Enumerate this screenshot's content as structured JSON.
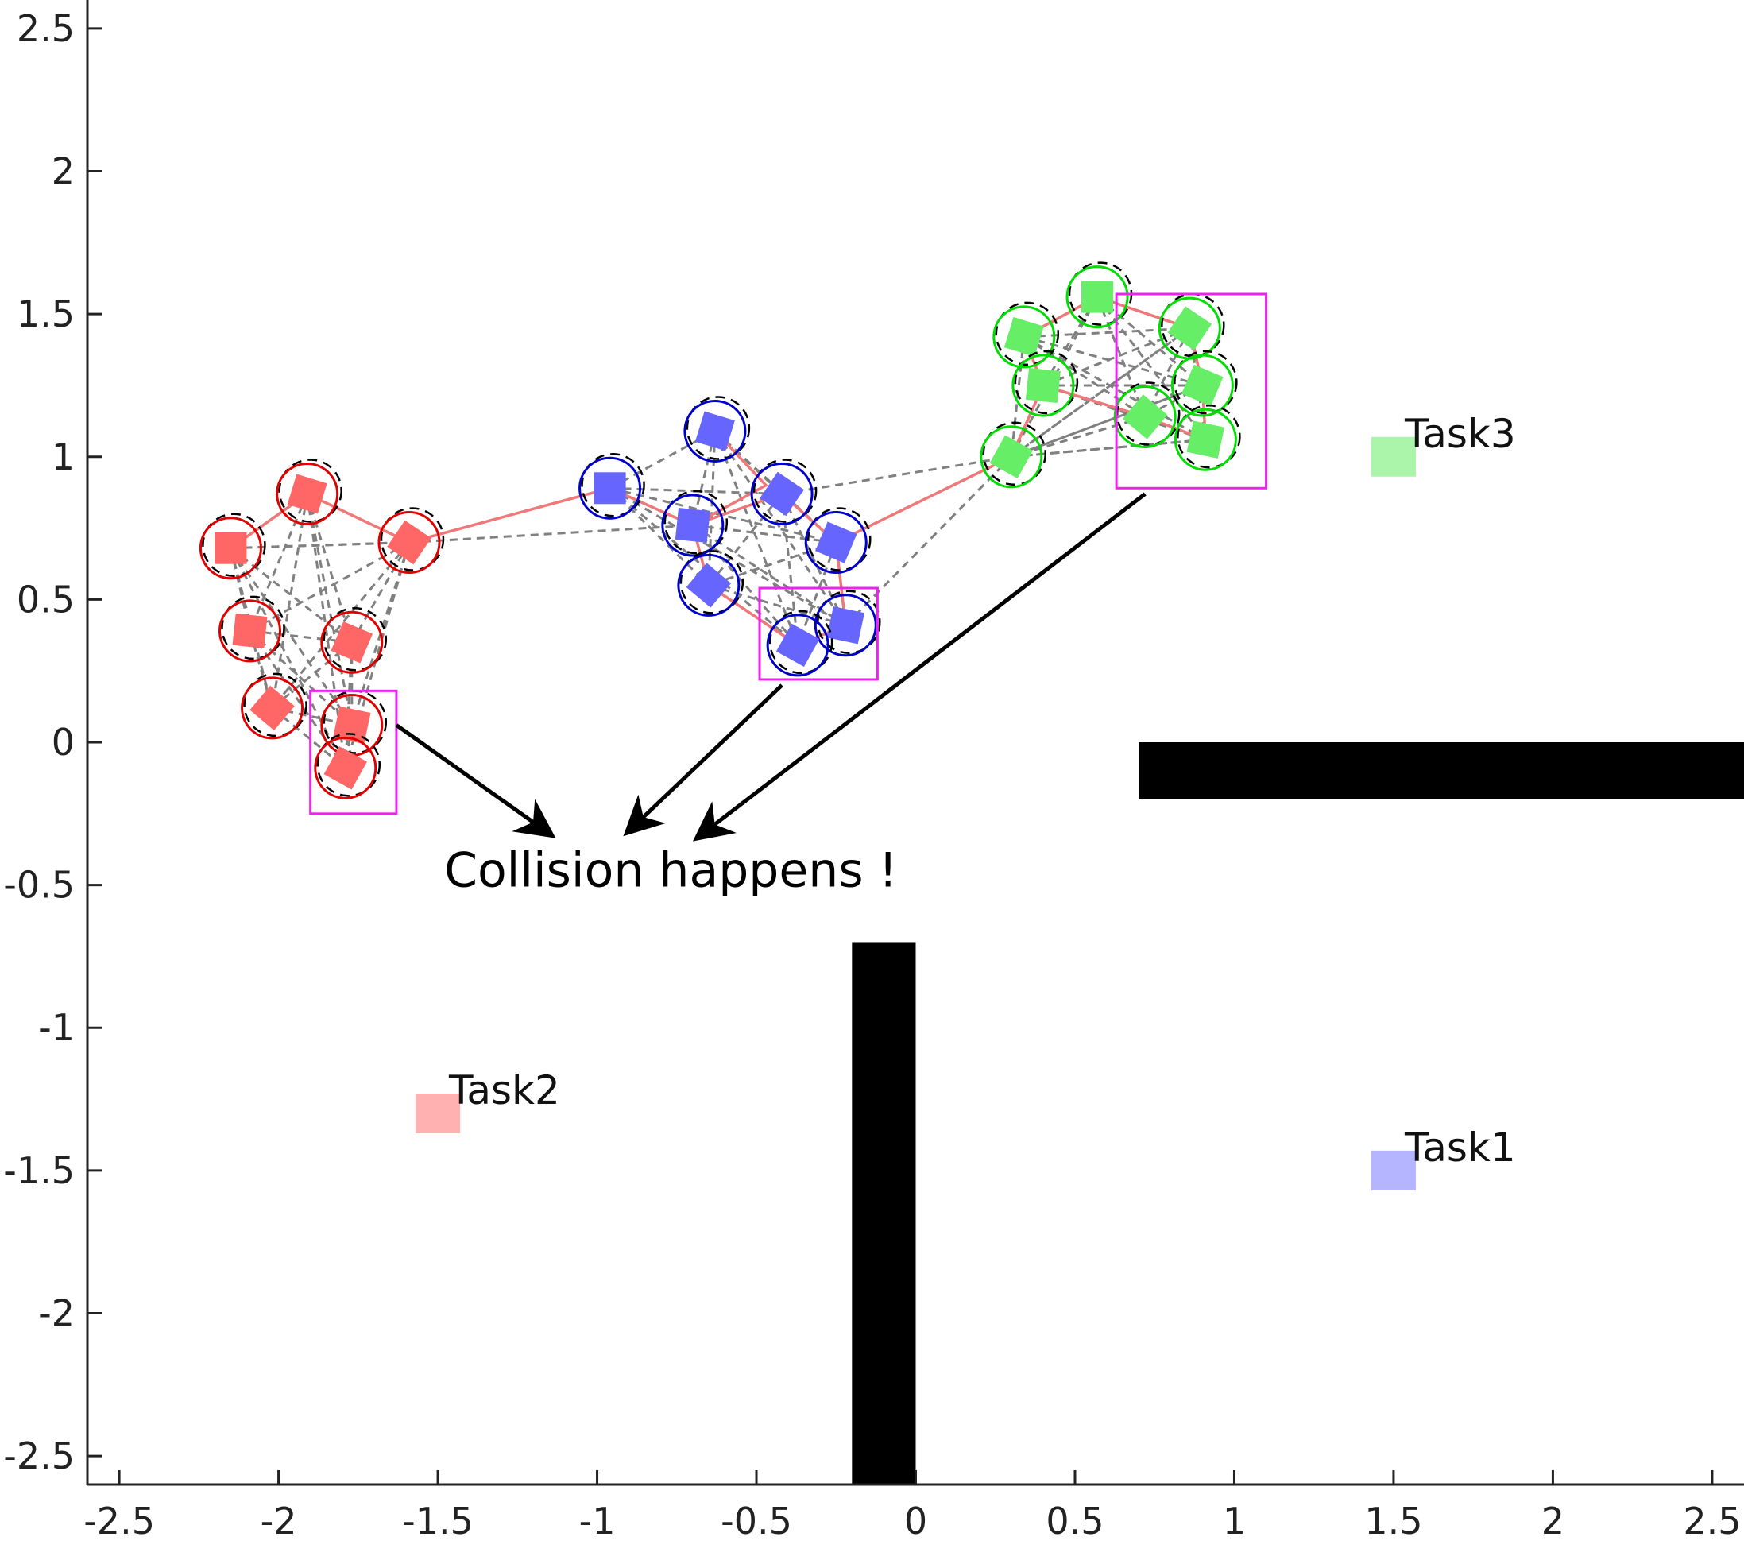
{
  "chart_data": {
    "type": "scatter",
    "xlim": [
      -2.6,
      2.6
    ],
    "ylim": [
      -2.6,
      2.6
    ],
    "x_ticks": [
      "-2.5",
      "-2",
      "-1.5",
      "-1",
      "-0.5",
      "0",
      "0.5",
      "1",
      "1.5",
      "2",
      "2.5"
    ],
    "y_ticks": [
      "2.5",
      "2",
      "1.5",
      "1",
      "0.5",
      "0",
      "-0.5",
      "-1",
      "-1.5",
      "-2",
      "-2.5"
    ],
    "grid": false,
    "colors": {
      "red": "#ff6666",
      "blue": "#6666ff",
      "green": "#66ee66",
      "red_ring": "#e00000",
      "blue_ring": "#0000cc",
      "green_ring": "#00dd00",
      "path": "#f07878",
      "link": "#808080",
      "box": "#ee22ee"
    },
    "groups": [
      {
        "color": "red",
        "points": [
          {
            "x": -2.15,
            "y": 0.68
          },
          {
            "x": -1.91,
            "y": 0.87
          },
          {
            "x": -1.59,
            "y": 0.7
          },
          {
            "x": -2.09,
            "y": 0.39
          },
          {
            "x": -1.77,
            "y": 0.35
          },
          {
            "x": -2.02,
            "y": 0.12
          },
          {
            "x": -1.77,
            "y": 0.06
          },
          {
            "x": -1.79,
            "y": -0.09
          }
        ],
        "path": [
          [
            -2.15,
            0.68
          ],
          [
            -1.91,
            0.87
          ],
          [
            -1.59,
            0.7
          ],
          [
            -0.96,
            0.89
          ],
          [
            -0.7,
            0.76
          ],
          [
            -0.42,
            0.87
          ],
          [
            -0.25,
            0.7
          ],
          [
            0.3,
            1.0
          ]
        ],
        "box": {
          "x0": -1.9,
          "x1": -1.63,
          "y0": -0.25,
          "y1": 0.18
        }
      },
      {
        "color": "blue",
        "points": [
          {
            "x": -0.96,
            "y": 0.89
          },
          {
            "x": -0.63,
            "y": 1.09
          },
          {
            "x": -0.42,
            "y": 0.87
          },
          {
            "x": -0.7,
            "y": 0.76
          },
          {
            "x": -0.25,
            "y": 0.7
          },
          {
            "x": -0.65,
            "y": 0.55
          },
          {
            "x": -0.22,
            "y": 0.41
          },
          {
            "x": -0.37,
            "y": 0.34
          }
        ],
        "path": [
          [
            -0.63,
            1.09
          ],
          [
            -0.47,
            0.9
          ],
          [
            -0.7,
            0.76
          ],
          [
            -0.65,
            0.55
          ],
          [
            -0.37,
            0.34
          ],
          [
            -0.22,
            0.41
          ],
          [
            -0.25,
            0.7
          ]
        ],
        "box": {
          "x0": -0.49,
          "x1": -0.12,
          "y0": 0.22,
          "y1": 0.54
        }
      },
      {
        "color": "green",
        "points": [
          {
            "x": 0.57,
            "y": 1.56
          },
          {
            "x": 0.34,
            "y": 1.42
          },
          {
            "x": 0.86,
            "y": 1.45
          },
          {
            "x": 0.4,
            "y": 1.25
          },
          {
            "x": 0.9,
            "y": 1.25
          },
          {
            "x": 0.72,
            "y": 1.14
          },
          {
            "x": 0.91,
            "y": 1.06
          },
          {
            "x": 0.3,
            "y": 1.0
          }
        ],
        "path": [
          [
            0.3,
            1.0
          ],
          [
            0.4,
            1.25
          ],
          [
            0.34,
            1.42
          ],
          [
            0.57,
            1.56
          ],
          [
            0.86,
            1.45
          ],
          [
            0.9,
            1.25
          ],
          [
            0.91,
            1.06
          ],
          [
            0.72,
            1.14
          ],
          [
            0.4,
            1.25
          ]
        ],
        "box": {
          "x0": 0.63,
          "x1": 1.1,
          "y0": 0.89,
          "y1": 1.57
        }
      }
    ],
    "tasks": [
      {
        "label": "Task3",
        "x": 1.5,
        "y": 1.0,
        "color": "#aaf5aa"
      },
      {
        "label": "Task2",
        "x": -1.5,
        "y": -1.3,
        "color": "#ffb0b0"
      },
      {
        "label": "Task1",
        "x": 1.5,
        "y": -1.5,
        "color": "#b4b4ff"
      }
    ],
    "obstacles": [
      {
        "x0": 0.7,
        "x1": 2.6,
        "y0": -0.2,
        "y1": 0.0
      },
      {
        "x0": -0.2,
        "x1": 0.0,
        "y0": -2.6,
        "y1": -0.7
      }
    ],
    "annotation": {
      "text": "Collision happens !",
      "x": -1.48,
      "y": -0.45,
      "arrows": [
        {
          "from": [
            -1.63,
            0.06
          ],
          "to": [
            -1.15,
            -0.32
          ]
        },
        {
          "from": [
            -0.42,
            0.2
          ],
          "to": [
            -0.9,
            -0.31
          ]
        },
        {
          "from": [
            0.72,
            0.87
          ],
          "to": [
            -0.68,
            -0.33
          ]
        }
      ]
    }
  }
}
